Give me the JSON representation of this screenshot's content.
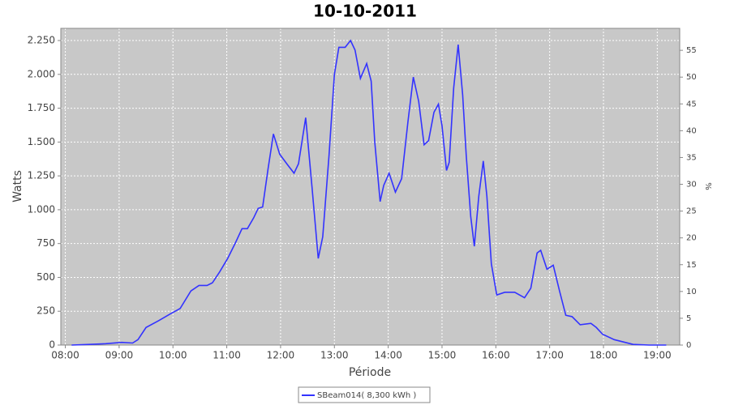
{
  "chart_data": {
    "type": "line",
    "title": "10-10-2011",
    "x_label": "Période",
    "y_label": "Watts",
    "y2_label": "%",
    "x": [
      "08:07",
      "08:27",
      "08:45",
      "09:03",
      "09:15",
      "09:21",
      "09:30",
      "09:44",
      "09:57",
      "10:08",
      "10:20",
      "10:29",
      "10:38",
      "10:44",
      "10:52",
      "11:01",
      "11:10",
      "11:17",
      "11:23",
      "11:30",
      "11:35",
      "11:40",
      "11:46",
      "11:52",
      "11:59",
      "12:08",
      "12:15",
      "12:20",
      "12:28",
      "12:35",
      "12:42",
      "12:47",
      "12:54",
      "13:00",
      "13:05",
      "13:12",
      "13:18",
      "13:23",
      "13:29",
      "13:36",
      "13:41",
      "13:45",
      "13:51",
      "13:55",
      "14:01",
      "14:08",
      "14:15",
      "14:22",
      "14:28",
      "14:34",
      "14:40",
      "14:45",
      "14:51",
      "14:56",
      "15:00",
      "15:05",
      "15:08",
      "15:13",
      "15:18",
      "15:23",
      "15:27",
      "15:32",
      "15:36",
      "15:41",
      "15:46",
      "15:50",
      "15:55",
      "16:01",
      "16:10",
      "16:21",
      "16:32",
      "16:39",
      "16:46",
      "16:50",
      "16:57",
      "17:04",
      "17:11",
      "17:18",
      "17:25",
      "17:34",
      "17:46",
      "17:52",
      "17:59",
      "18:12",
      "18:33",
      "18:51",
      "19:10"
    ],
    "series": [
      {
        "name": "SBeam014( 8,300 kWh )",
        "color": "#3333ff",
        "values": [
          0,
          5,
          10,
          20,
          15,
          40,
          130,
          180,
          230,
          270,
          400,
          440,
          440,
          460,
          540,
          640,
          760,
          860,
          860,
          940,
          1010,
          1020,
          1300,
          1560,
          1410,
          1330,
          1270,
          1340,
          1680,
          1170,
          640,
          800,
          1400,
          2000,
          2200,
          2200,
          2250,
          2180,
          1970,
          2080,
          1950,
          1500,
          1060,
          1180,
          1270,
          1130,
          1230,
          1650,
          1980,
          1800,
          1480,
          1510,
          1720,
          1780,
          1620,
          1290,
          1350,
          1900,
          2220,
          1850,
          1400,
          950,
          730,
          1100,
          1360,
          1100,
          600,
          370,
          390,
          390,
          350,
          420,
          680,
          700,
          560,
          590,
          400,
          220,
          210,
          150,
          160,
          130,
          80,
          40,
          5,
          0,
          0
        ]
      }
    ],
    "xlim": [
      "07:55",
      "19:25"
    ],
    "xticks": [
      "08:00",
      "09:00",
      "10:00",
      "11:00",
      "12:00",
      "13:00",
      "14:00",
      "15:00",
      "16:00",
      "17:00",
      "18:00",
      "19:00"
    ],
    "ylim": [
      0,
      2340
    ],
    "yticks": [
      0,
      250,
      500,
      750,
      {
        "value": 1000,
        "label": "1.000"
      },
      {
        "value": 1250,
        "label": "1.250"
      },
      {
        "value": 1500,
        "label": "1.500"
      },
      {
        "value": 1750,
        "label": "1.750"
      },
      {
        "value": 2000,
        "label": "2.000"
      },
      {
        "value": 2250,
        "label": "2.250"
      }
    ],
    "y2lim": [
      0,
      59.1
    ],
    "y2ticks": [
      0,
      5,
      10,
      15,
      20,
      25,
      30,
      35,
      40,
      45,
      50,
      55
    ],
    "grid": true
  }
}
